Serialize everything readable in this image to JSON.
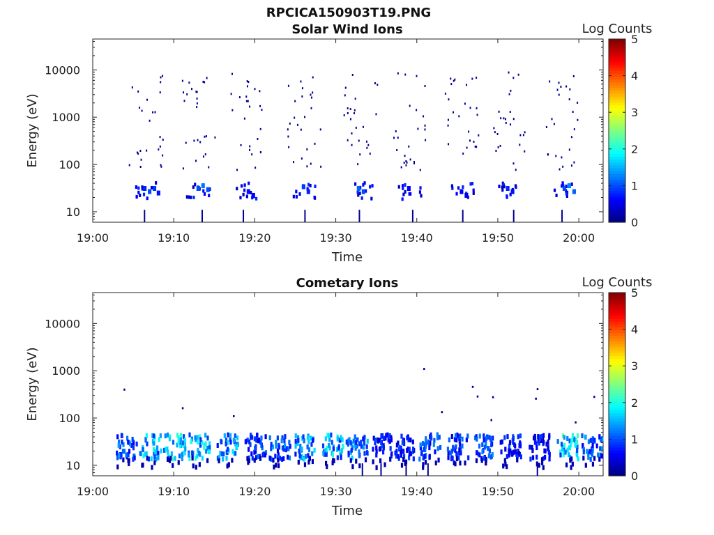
{
  "figure_title": "RPCICA150903T19.PNG",
  "chart_data": [
    {
      "type": "heatmap",
      "title": "Solar Wind Ions",
      "xlabel": "Time",
      "ylabel": "Energy (eV)",
      "x_ticks": [
        "19:00",
        "19:10",
        "19:20",
        "19:30",
        "19:40",
        "19:50",
        "20:00"
      ],
      "xlim_minutes": [
        0,
        63
      ],
      "y_scale": "log",
      "ylim": [
        6,
        45000
      ],
      "y_ticks": [
        10,
        100,
        1000,
        10000
      ],
      "y_tick_labels": [
        "10",
        "100",
        "1000",
        "10000"
      ],
      "colorbar": {
        "label": "Log Counts",
        "range": [
          0,
          5
        ],
        "ticks": [
          "0",
          "1",
          "2",
          "3",
          "4",
          "5"
        ],
        "colormap": "jet"
      },
      "bursts_minutes": [
        6.5,
        13,
        19,
        26,
        33,
        39,
        45.5,
        51.5,
        58
      ],
      "low_energy_band_eV": [
        20,
        45
      ],
      "values": [
        {
          "t": 6.2,
          "e": 35,
          "v": 0.8
        },
        {
          "t": 6.8,
          "e": 30,
          "v": 1.0
        },
        {
          "t": 7.4,
          "e": 35,
          "v": 0.9
        },
        {
          "t": 7.9,
          "e": 28,
          "v": 0.7
        },
        {
          "t": 12.8,
          "e": 35,
          "v": 1.0
        },
        {
          "t": 13.4,
          "e": 40,
          "v": 1.2
        },
        {
          "t": 14.0,
          "e": 33,
          "v": 1.0
        },
        {
          "t": 19.0,
          "e": 30,
          "v": 0.7
        },
        {
          "t": 19.6,
          "e": 25,
          "v": 0.6
        },
        {
          "t": 25.8,
          "e": 38,
          "v": 0.9
        },
        {
          "t": 26.4,
          "e": 30,
          "v": 0.8
        },
        {
          "t": 32.6,
          "e": 35,
          "v": 1.1
        },
        {
          "t": 33.2,
          "e": 30,
          "v": 1.0
        },
        {
          "t": 38.8,
          "e": 35,
          "v": 0.6
        },
        {
          "t": 45.3,
          "e": 30,
          "v": 0.6
        },
        {
          "t": 45.9,
          "e": 25,
          "v": 0.5
        },
        {
          "t": 51.0,
          "e": 35,
          "v": 0.8
        },
        {
          "t": 51.6,
          "e": 30,
          "v": 0.7
        },
        {
          "t": 58.0,
          "e": 35,
          "v": 1.0
        },
        {
          "t": 58.6,
          "e": 40,
          "v": 1.3
        },
        {
          "t": 59.2,
          "e": 30,
          "v": 1.1
        }
      ]
    },
    {
      "type": "heatmap",
      "title": "Cometary Ions",
      "xlabel": "Time",
      "ylabel": "Energy (eV)",
      "x_ticks": [
        "19:00",
        "19:10",
        "19:20",
        "19:30",
        "19:40",
        "19:50",
        "20:00"
      ],
      "xlim_minutes": [
        0,
        63
      ],
      "y_scale": "log",
      "ylim": [
        6,
        45000
      ],
      "y_ticks": [
        10,
        100,
        1000,
        10000
      ],
      "y_tick_labels": [
        "10",
        "100",
        "1000",
        "10000"
      ],
      "colorbar": {
        "label": "Log Counts",
        "range": [
          0,
          5
        ],
        "ticks": [
          "0",
          "1",
          "2",
          "3",
          "4",
          "5"
        ],
        "colormap": "jet"
      },
      "bursts_minutes": [
        4,
        7,
        10,
        13,
        16.5,
        20,
        23,
        26,
        29.5,
        32.5,
        35.5,
        38.5,
        41.5,
        45,
        48,
        51.5,
        55,
        58.5,
        61.5
      ],
      "peak_log_counts": [
        1.5,
        2.0,
        2.2,
        2.1,
        1.8,
        1.2,
        1.4,
        1.9,
        2.1,
        1.7,
        1.0,
        1.1,
        1.3,
        1.2,
        1.4,
        1.0,
        0.9,
        2.4,
        1.5
      ],
      "main_band_eV": [
        15,
        50
      ],
      "sparse_high_energy_hits_eV": [
        {
          "t": 3.8,
          "e": 420
        },
        {
          "t": 11.0,
          "e": 170
        },
        {
          "t": 17.3,
          "e": 115
        },
        {
          "t": 40.8,
          "e": 1150
        },
        {
          "t": 43.0,
          "e": 140
        },
        {
          "t": 46.8,
          "e": 480
        },
        {
          "t": 47.4,
          "e": 300
        },
        {
          "t": 49.3,
          "e": 290
        },
        {
          "t": 49.1,
          "e": 95
        },
        {
          "t": 54.8,
          "e": 430
        },
        {
          "t": 54.6,
          "e": 270
        },
        {
          "t": 59.5,
          "e": 85
        },
        {
          "t": 61.8,
          "e": 295
        }
      ]
    }
  ]
}
